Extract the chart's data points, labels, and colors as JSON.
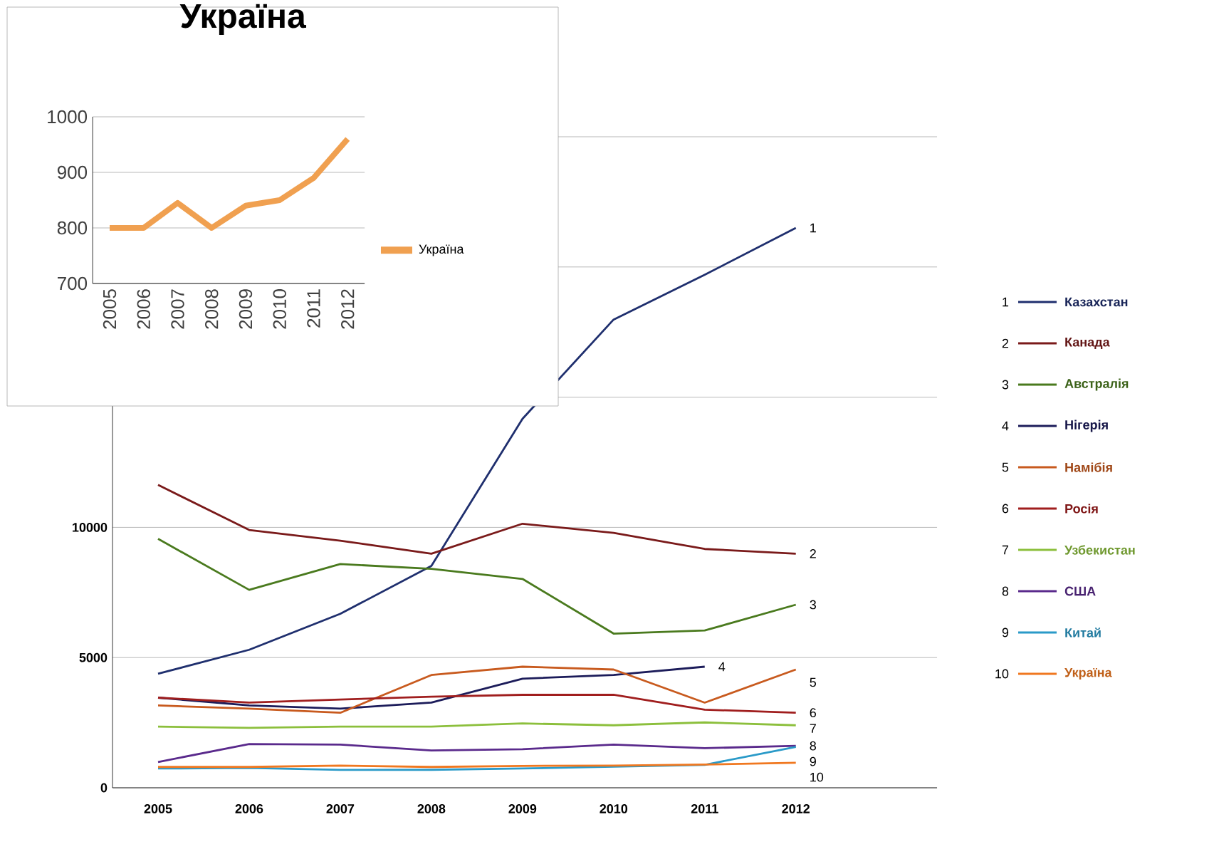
{
  "chart_data": [
    {
      "type": "line",
      "categories": [
        "2005",
        "2006",
        "2007",
        "2008",
        "2009",
        "2010",
        "2011",
        "2012"
      ],
      "ylim": [
        0,
        25000
      ],
      "yticks": [
        0,
        5000,
        10000,
        {
          "value": 15000,
          "label": null
        },
        {
          "value": 20000,
          "label": null
        },
        {
          "value": 25000,
          "label": null
        }
      ],
      "grid": "y",
      "legend": "right",
      "marker": "none",
      "series": [
        {
          "name": "Казахстан",
          "color": "#1f2f6e",
          "values": [
            4380,
            5300,
            6680,
            8520,
            14170,
            17980,
            19700,
            21500
          ]
        },
        {
          "name": "Канада",
          "color": "#7a1a1a",
          "values": [
            11630,
            9900,
            9490,
            8990,
            10140,
            9790,
            9170,
            8990
          ]
        },
        {
          "name": "Австралія",
          "color": "#4a7a1e",
          "values": [
            9560,
            7600,
            8590,
            8410,
            8020,
            5920,
            6040,
            7030
          ]
        },
        {
          "name": "Нігерія",
          "color": "#1c1c5a",
          "values": [
            3460,
            3160,
            3040,
            3270,
            4190,
            4330,
            4650,
            null
          ]
        },
        {
          "name": "Намібія",
          "color": "#c85a1e",
          "values": [
            3160,
            3040,
            2880,
            4330,
            4650,
            4540,
            3270,
            4540
          ]
        },
        {
          "name": "Росія",
          "color": "#a01e1e",
          "values": [
            3460,
            3270,
            3390,
            3500,
            3570,
            3570,
            3000,
            2880
          ]
        },
        {
          "name": "Узбекистан",
          "color": "#8cbf3c",
          "values": [
            2350,
            2300,
            2350,
            2350,
            2470,
            2400,
            2510,
            2400
          ]
        },
        {
          "name": "США",
          "color": "#5a2a8c",
          "values": [
            990,
            1680,
            1660,
            1430,
            1480,
            1660,
            1520,
            1610
          ]
        },
        {
          "name": "Китай",
          "color": "#2a9ac8",
          "values": [
            740,
            760,
            690,
            690,
            740,
            810,
            880,
            1570
          ]
        },
        {
          "name": "Україна",
          "color": "#f07820",
          "values": [
            800,
            800,
            850,
            800,
            840,
            850,
            890,
            960
          ]
        }
      ],
      "annotations": [
        "1",
        "2",
        "3",
        "4",
        "5",
        "6",
        "7",
        "8",
        "9",
        "10"
      ]
    },
    {
      "type": "line",
      "title": "Україна",
      "categories": [
        "2005",
        "2006",
        "2007",
        "2008",
        "2009",
        "2010",
        "2011",
        "2012"
      ],
      "ylim": [
        700,
        1000
      ],
      "yticks": [
        700,
        800,
        900,
        1000
      ],
      "grid": "y",
      "legend": "right",
      "marker": "none",
      "series": [
        {
          "name": "Україна",
          "color": "#f0a050",
          "values": [
            800,
            800,
            845,
            800,
            840,
            850,
            890,
            960
          ]
        }
      ]
    }
  ]
}
